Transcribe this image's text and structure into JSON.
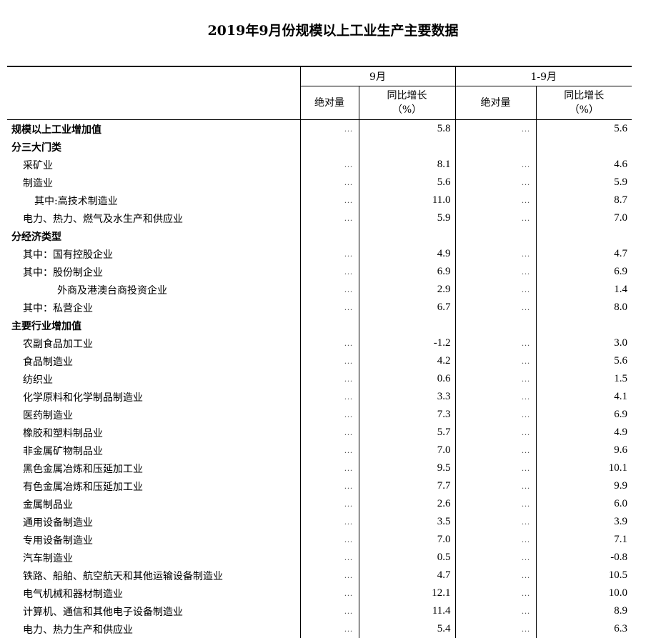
{
  "title": "2019年9月份规模以上工业生产主要数据",
  "header": {
    "period1": "9月",
    "period2": "1-9月",
    "abs": "绝对量",
    "yoy_line1": "同比增长",
    "yoy_line2": "（%）"
  },
  "rows": [
    {
      "label": "规模以上工业增加值",
      "indent": 0,
      "bold": true,
      "a1": "…",
      "v1": "5.8",
      "a2": "…",
      "v2": "5.6"
    },
    {
      "label": "分三大门类",
      "indent": 0,
      "bold": true,
      "a1": "",
      "v1": "",
      "a2": "",
      "v2": ""
    },
    {
      "label": "采矿业",
      "indent": 1,
      "bold": false,
      "a1": "…",
      "v1": "8.1",
      "a2": "…",
      "v2": "4.6"
    },
    {
      "label": "制造业",
      "indent": 1,
      "bold": false,
      "a1": "…",
      "v1": "5.6",
      "a2": "…",
      "v2": "5.9"
    },
    {
      "label": "其中:高技术制造业",
      "indent": 2,
      "bold": false,
      "a1": "…",
      "v1": "11.0",
      "a2": "…",
      "v2": "8.7"
    },
    {
      "label": "电力、热力、燃气及水生产和供应业",
      "indent": 1,
      "bold": false,
      "a1": "…",
      "v1": "5.9",
      "a2": "…",
      "v2": "7.0"
    },
    {
      "label": "分经济类型",
      "indent": 0,
      "bold": true,
      "a1": "",
      "v1": "",
      "a2": "",
      "v2": ""
    },
    {
      "label": "其中：国有控股企业",
      "indent": 1,
      "bold": false,
      "a1": "…",
      "v1": "4.9",
      "a2": "…",
      "v2": "4.7"
    },
    {
      "label": "其中：股份制企业",
      "indent": 1,
      "bold": false,
      "a1": "…",
      "v1": "6.9",
      "a2": "…",
      "v2": "6.9"
    },
    {
      "label": "外商及港澳台商投资企业",
      "indent": 3,
      "bold": false,
      "a1": "…",
      "v1": "2.9",
      "a2": "…",
      "v2": "1.4"
    },
    {
      "label": "其中：私营企业",
      "indent": 1,
      "bold": false,
      "a1": "…",
      "v1": "6.7",
      "a2": "…",
      "v2": "8.0"
    },
    {
      "label": "主要行业增加值",
      "indent": 0,
      "bold": true,
      "a1": "",
      "v1": "",
      "a2": "",
      "v2": ""
    },
    {
      "label": "农副食品加工业",
      "indent": 1,
      "bold": false,
      "a1": "…",
      "v1": "-1.2",
      "a2": "…",
      "v2": "3.0"
    },
    {
      "label": "食品制造业",
      "indent": 1,
      "bold": false,
      "a1": "…",
      "v1": "4.2",
      "a2": "…",
      "v2": "5.6"
    },
    {
      "label": "纺织业",
      "indent": 1,
      "bold": false,
      "a1": "…",
      "v1": "0.6",
      "a2": "…",
      "v2": "1.5"
    },
    {
      "label": "化学原料和化学制品制造业",
      "indent": 1,
      "bold": false,
      "a1": "…",
      "v1": "3.3",
      "a2": "…",
      "v2": "4.1"
    },
    {
      "label": "医药制造业",
      "indent": 1,
      "bold": false,
      "a1": "…",
      "v1": "7.3",
      "a2": "…",
      "v2": "6.9"
    },
    {
      "label": "橡胶和塑料制品业",
      "indent": 1,
      "bold": false,
      "a1": "…",
      "v1": "5.7",
      "a2": "…",
      "v2": "4.9"
    },
    {
      "label": "非金属矿物制品业",
      "indent": 1,
      "bold": false,
      "a1": "…",
      "v1": "7.0",
      "a2": "…",
      "v2": "9.6"
    },
    {
      "label": "黑色金属冶炼和压延加工业",
      "indent": 1,
      "bold": false,
      "a1": "…",
      "v1": "9.5",
      "a2": "…",
      "v2": "10.1"
    },
    {
      "label": "有色金属冶炼和压延加工业",
      "indent": 1,
      "bold": false,
      "a1": "…",
      "v1": "7.7",
      "a2": "…",
      "v2": "9.9"
    },
    {
      "label": "金属制品业",
      "indent": 1,
      "bold": false,
      "a1": "…",
      "v1": "2.6",
      "a2": "…",
      "v2": "6.0"
    },
    {
      "label": "通用设备制造业",
      "indent": 1,
      "bold": false,
      "a1": "…",
      "v1": "3.5",
      "a2": "…",
      "v2": "3.9"
    },
    {
      "label": "专用设备制造业",
      "indent": 1,
      "bold": false,
      "a1": "…",
      "v1": "7.0",
      "a2": "…",
      "v2": "7.1"
    },
    {
      "label": "汽车制造业",
      "indent": 1,
      "bold": false,
      "a1": "…",
      "v1": "0.5",
      "a2": "…",
      "v2": "-0.8"
    },
    {
      "label": "铁路、船舶、航空航天和其他运输设备制造业",
      "indent": 1,
      "bold": false,
      "a1": "…",
      "v1": "4.7",
      "a2": "…",
      "v2": "10.5"
    },
    {
      "label": "电气机械和器材制造业",
      "indent": 1,
      "bold": false,
      "a1": "…",
      "v1": "12.1",
      "a2": "…",
      "v2": "10.0"
    },
    {
      "label": "计算机、通信和其他电子设备制造业",
      "indent": 1,
      "bold": false,
      "a1": "…",
      "v1": "11.4",
      "a2": "…",
      "v2": "8.9"
    },
    {
      "label": "电力、热力生产和供应业",
      "indent": 1,
      "bold": false,
      "a1": "…",
      "v1": "5.4",
      "a2": "…",
      "v2": "6.3"
    }
  ]
}
